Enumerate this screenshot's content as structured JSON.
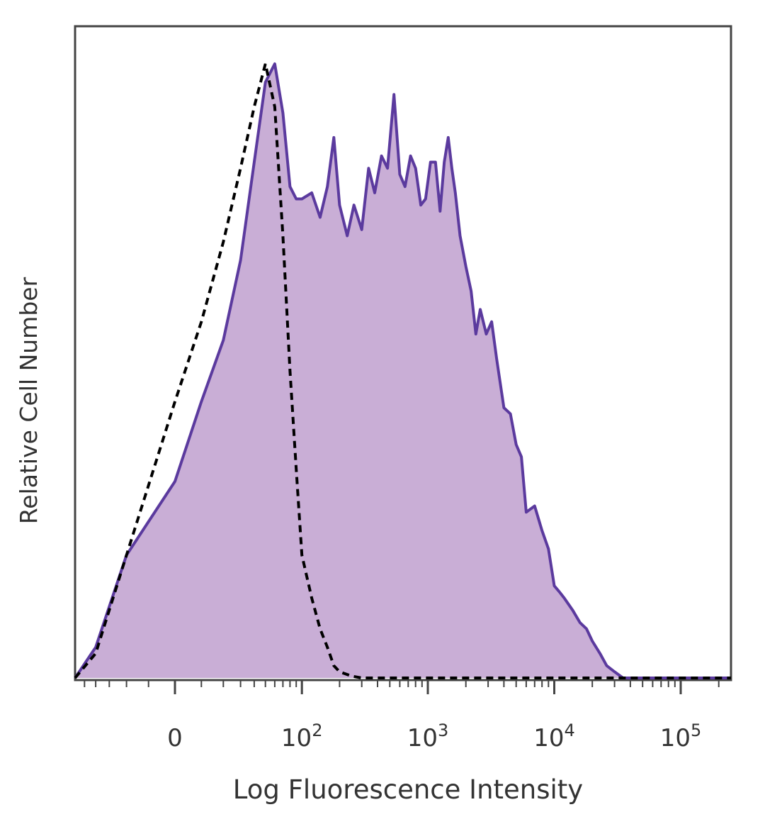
{
  "chart_data": {
    "type": "area",
    "title": "",
    "xlabel": "Log Fluorescence Intensity",
    "ylabel": "Relative Cell Number",
    "x_scale": "biexponential",
    "xlim": [
      -60,
      250000
    ],
    "ylim": [
      0,
      1.0
    ],
    "x_ticks": [
      {
        "value": 0,
        "label": "0"
      },
      {
        "value": 100,
        "base": "10",
        "exp": "2"
      },
      {
        "value": 1000,
        "base": "10",
        "exp": "3"
      },
      {
        "value": 10000,
        "base": "10",
        "exp": "4"
      },
      {
        "value": 100000,
        "base": "10",
        "exp": "5"
      }
    ],
    "grid": false,
    "legend": "none",
    "series": [
      {
        "style": "filled",
        "color": "#5b3a9e",
        "fill": "#c9aed6",
        "x": [
          -60,
          -40,
          -20,
          0,
          10,
          20,
          30,
          40,
          50,
          60,
          70,
          80,
          90,
          100,
          120,
          140,
          160,
          180,
          200,
          230,
          260,
          300,
          340,
          380,
          430,
          480,
          540,
          600,
          660,
          730,
          800,
          880,
          960,
          1050,
          1150,
          1250,
          1350,
          1450,
          1550,
          1650,
          1800,
          2000,
          2200,
          2400,
          2600,
          2900,
          3200,
          3500,
          4000,
          4500,
          5000,
          5500,
          6000,
          7000,
          8000,
          9000,
          10000,
          11000,
          12000,
          14000,
          16000,
          18000,
          20000,
          23000,
          26000,
          30000,
          35000,
          40000,
          60000,
          100000,
          250000
        ],
        "y": [
          0,
          0.05,
          0.2,
          0.32,
          0.45,
          0.55,
          0.68,
          0.84,
          0.97,
          1.0,
          0.92,
          0.8,
          0.78,
          0.78,
          0.79,
          0.75,
          0.8,
          0.88,
          0.77,
          0.72,
          0.77,
          0.73,
          0.83,
          0.79,
          0.85,
          0.83,
          0.95,
          0.82,
          0.8,
          0.85,
          0.83,
          0.77,
          0.78,
          0.84,
          0.84,
          0.76,
          0.84,
          0.88,
          0.83,
          0.79,
          0.72,
          0.67,
          0.63,
          0.56,
          0.6,
          0.56,
          0.58,
          0.52,
          0.44,
          0.43,
          0.38,
          0.36,
          0.27,
          0.28,
          0.24,
          0.21,
          0.15,
          0.14,
          0.13,
          0.11,
          0.09,
          0.08,
          0.06,
          0.04,
          0.02,
          0.01,
          0,
          0,
          0,
          0,
          0
        ]
      },
      {
        "style": "dashed",
        "color": "#000000",
        "x": [
          -60,
          -40,
          -20,
          0,
          10,
          20,
          30,
          40,
          50,
          60,
          70,
          80,
          90,
          100,
          120,
          140,
          160,
          180,
          200,
          250,
          300,
          350,
          400,
          500,
          1000,
          10000,
          250000
        ],
        "y": [
          0,
          0.04,
          0.2,
          0.45,
          0.58,
          0.71,
          0.83,
          0.93,
          1.0,
          0.93,
          0.72,
          0.5,
          0.34,
          0.2,
          0.13,
          0.08,
          0.05,
          0.02,
          0.01,
          0.003,
          0,
          0,
          0,
          0,
          0,
          0,
          0
        ]
      }
    ]
  }
}
